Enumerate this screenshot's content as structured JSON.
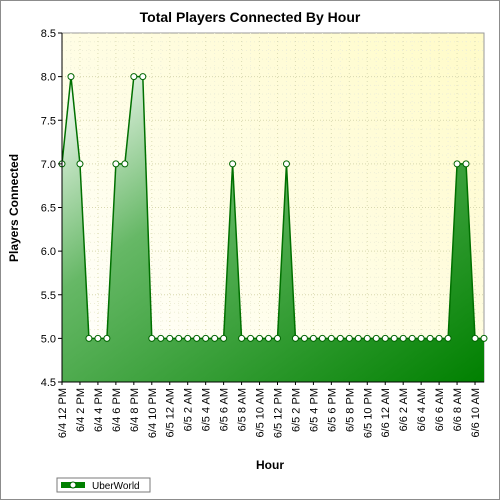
{
  "chart_data": {
    "type": "area",
    "title": "Total Players Connected By Hour",
    "xlabel": "Hour",
    "ylabel": "Players Connected",
    "ylim": [
      4.5,
      8.5
    ],
    "yticks": [
      "4.5",
      "5.0",
      "5.5",
      "6.0",
      "6.5",
      "7.0",
      "7.5",
      "8.0",
      "8.5"
    ],
    "ytick_values": [
      4.5,
      5.0,
      5.5,
      6.0,
      6.5,
      7.0,
      7.5,
      8.0,
      8.5
    ],
    "xtick_labels": [
      "6/4 12 PM",
      "6/4 2 PM",
      "6/4 4 PM",
      "6/4 6 PM",
      "6/4 8 PM",
      "6/4 10 PM",
      "6/5 12 AM",
      "6/5 2 AM",
      "6/5 4 AM",
      "6/5 6 AM",
      "6/5 8 AM",
      "6/5 10 AM",
      "6/5 12 PM",
      "6/5 2 PM",
      "6/5 4 PM",
      "6/5 6 PM",
      "6/5 8 PM",
      "6/5 10 PM",
      "6/6 12 AM",
      "6/6 2 AM",
      "6/6 4 AM",
      "6/6 6 AM",
      "6/6 8 AM",
      "6/6 10 AM"
    ],
    "x_start": "6/4 12 PM",
    "x_end": "6/6 11 AM",
    "x_step_hours": 1,
    "series": [
      {
        "name": "UberWorld",
        "color": "#008000",
        "values": [
          7,
          8,
          7,
          5,
          5,
          5,
          7,
          7,
          8,
          8,
          5,
          5,
          5,
          5,
          5,
          5,
          5,
          5,
          5,
          7,
          5,
          5,
          5,
          5,
          5,
          7,
          5,
          5,
          5,
          5,
          5,
          5,
          5,
          5,
          5,
          5,
          5,
          5,
          5,
          5,
          5,
          5,
          5,
          5,
          7,
          7,
          5,
          5
        ]
      }
    ],
    "grid": true,
    "legend": "bottom-left",
    "background_colors": [
      "#ffffff",
      "#fffbc8"
    ]
  }
}
